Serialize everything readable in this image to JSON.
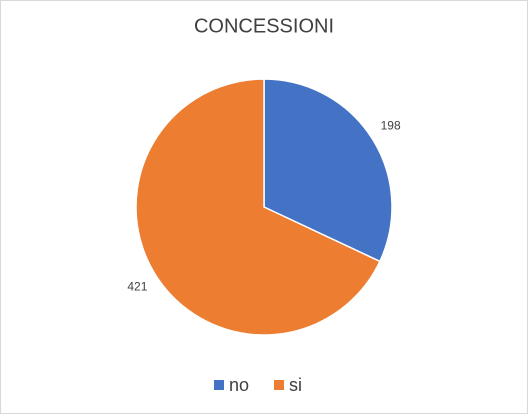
{
  "chart_data": {
    "type": "pie",
    "title": "CONCESSIONI",
    "categories": [
      "no",
      "si"
    ],
    "values": [
      198,
      421
    ],
    "colors": [
      "#4472c4",
      "#ed7d31"
    ],
    "legend": "bottom"
  }
}
